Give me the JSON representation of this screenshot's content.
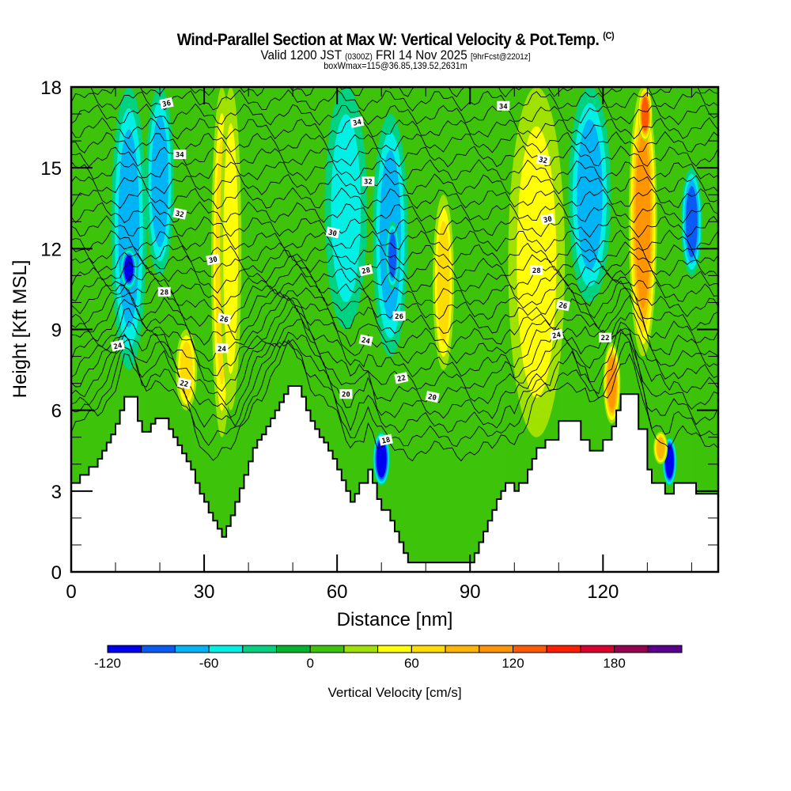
{
  "header": {
    "title": "Wind-Parallel Section at Max W: Vertical Velocity & Pot.Temp.",
    "copyright": "(C)",
    "valid_prefix": "Valid 1200 JST",
    "valid_utc": "(0300Z)",
    "valid_date": "FRI 14 Nov 2025",
    "forecast": "[9hrFcst@2201z]",
    "boxwmax": "boxWmax=115@36.85,139.52,2631m"
  },
  "chart_data": {
    "type": "heatmap",
    "title": "Wind-Parallel Section at Max W: Vertical Velocity & Pot.Temp.",
    "xlabel": "Distance [nm]",
    "ylabel": "Height [Kft MSL]",
    "xlim": [
      0,
      146
    ],
    "ylim": [
      0,
      18
    ],
    "xticks": [
      0,
      30,
      60,
      90,
      120
    ],
    "xtick_labels": [
      "0",
      "30",
      "60",
      "90",
      "120"
    ],
    "yticks": [
      0,
      3,
      6,
      9,
      12,
      15,
      18
    ],
    "ytick_labels": [
      "0",
      "3",
      "6",
      "9",
      "12",
      "15",
      "18"
    ],
    "x_minor_step": 10,
    "y_minor_step": 1,
    "colorbar": {
      "label": "Vertical Velocity [cm/s]",
      "placement": "bottom",
      "min": -120,
      "step": 20,
      "tick_values": [
        -120,
        -60,
        0,
        60,
        120,
        180
      ],
      "tick_labels": [
        "-120",
        "-60",
        "0",
        "60",
        "120",
        "180"
      ],
      "colors": [
        "#0000f0",
        "#0a5af5",
        "#00b4f5",
        "#00f0e6",
        "#00d282",
        "#00b42d",
        "#3cc30a",
        "#a0e100",
        "#ffff00",
        "#ffdc00",
        "#ffb400",
        "#ff9600",
        "#ff5a00",
        "#ff1e00",
        "#dc0032",
        "#960050",
        "#5a008c"
      ]
    },
    "background_value_cm_s": 0,
    "velocity_streaks": [
      {
        "x": 13,
        "xw": 2.5,
        "y0": 7.5,
        "y1": 18,
        "value": -60
      },
      {
        "x": 13,
        "xw": 1.2,
        "y0": 10.5,
        "y1": 12,
        "value": -100
      },
      {
        "x": 20,
        "xw": 2,
        "y0": 11,
        "y1": 18,
        "value": -50
      },
      {
        "x": 34,
        "xw": 1.5,
        "y0": 5,
        "y1": 18,
        "value": 60
      },
      {
        "x": 36,
        "xw": 1.5,
        "y0": 6,
        "y1": 18,
        "value": 40
      },
      {
        "x": 26,
        "xw": 1.5,
        "y0": 6,
        "y1": 9,
        "value": 50
      },
      {
        "x": 62,
        "xw": 3,
        "y0": 9,
        "y1": 18,
        "value": -40
      },
      {
        "x": 72,
        "xw": 2.5,
        "y0": 8,
        "y1": 17,
        "value": -60
      },
      {
        "x": 72.5,
        "xw": 1,
        "y0": 10.5,
        "y1": 13,
        "value": -70
      },
      {
        "x": 84,
        "xw": 1.5,
        "y0": 7.5,
        "y1": 14,
        "value": 50
      },
      {
        "x": 70,
        "xw": 1.2,
        "y0": 3.2,
        "y1": 5.2,
        "value": -110
      },
      {
        "x": 105,
        "xw": 4,
        "y0": 5,
        "y1": 18,
        "value": 30
      },
      {
        "x": 117,
        "xw": 3,
        "y0": 10,
        "y1": 18,
        "value": -50
      },
      {
        "x": 129,
        "xw": 2,
        "y0": 8,
        "y1": 18,
        "value": 90
      },
      {
        "x": 129.5,
        "xw": 1,
        "y0": 16,
        "y1": 18,
        "value": 110
      },
      {
        "x": 122,
        "xw": 1.2,
        "y0": 5.5,
        "y1": 8.5,
        "value": 90
      },
      {
        "x": 140,
        "xw": 1.5,
        "y0": 11,
        "y1": 15,
        "value": -80
      },
      {
        "x": 135,
        "xw": 1,
        "y0": 3.2,
        "y1": 5,
        "value": -120
      },
      {
        "x": 133,
        "xw": 1,
        "y0": 4,
        "y1": 5.2,
        "value": 80
      }
    ],
    "terrain": {
      "x": [
        0,
        2,
        4,
        6,
        7,
        8,
        9,
        10,
        11,
        12,
        13,
        15,
        16,
        17,
        18,
        19,
        20,
        21,
        22,
        23,
        24,
        25,
        26,
        27,
        28,
        29,
        30,
        31,
        32,
        33,
        34,
        35,
        36,
        37,
        38,
        39,
        40,
        41,
        42,
        43,
        44,
        45,
        46,
        47,
        48,
        49,
        50,
        52,
        53,
        54,
        55,
        56,
        57,
        58,
        59,
        60,
        61,
        62,
        63,
        64,
        65,
        66,
        67,
        68,
        69,
        70,
        72,
        73,
        74,
        75,
        76,
        77,
        78,
        79,
        80,
        82,
        84,
        86,
        88,
        90,
        91,
        92,
        93,
        94,
        95,
        96,
        97,
        98,
        99,
        100,
        101,
        103,
        104,
        105,
        107,
        108,
        110,
        113,
        115,
        116,
        117,
        119,
        120,
        122,
        123,
        124,
        126,
        128,
        130,
        131,
        132,
        134,
        135,
        136,
        138,
        141,
        144,
        146
      ],
      "y": [
        3.3,
        3.6,
        3.9,
        4.2,
        4.5,
        4.8,
        5.1,
        5.5,
        6,
        6.5,
        6.5,
        5.6,
        5.2,
        5.2,
        5.5,
        5.7,
        5.7,
        5.7,
        5.3,
        5,
        4.7,
        4.4,
        4.1,
        3.8,
        3.3,
        2.9,
        2.6,
        2.2,
        1.9,
        1.6,
        1.3,
        1.7,
        2.1,
        2.6,
        3.1,
        3.6,
        4.1,
        4.6,
        4.9,
        5.1,
        5.4,
        5.7,
        6,
        6.3,
        6.6,
        6.9,
        6.9,
        6.5,
        6,
        5.6,
        5.3,
        5,
        4.8,
        4.5,
        4.2,
        3.8,
        3.4,
        3,
        2.6,
        2.9,
        3.3,
        3.3,
        3.8,
        3.3,
        2.7,
        2.3,
        1.9,
        1.5,
        1.1,
        0.7,
        0.35,
        0.35,
        0.35,
        0.35,
        0.35,
        0.35,
        0.35,
        0.35,
        0.35,
        0.35,
        0.7,
        1.1,
        1.5,
        1.9,
        2.3,
        2.7,
        3.0,
        3.3,
        3.3,
        3.0,
        3.3,
        3.8,
        4.2,
        4.6,
        4.9,
        4.9,
        5.6,
        5.6,
        4.9,
        4.9,
        4.5,
        4.5,
        4.9,
        5.4,
        6,
        6.6,
        6.6,
        5.3,
        3.8,
        3.3,
        3.3,
        2.9,
        2.9,
        3.3,
        3.3,
        2.9,
        2.9,
        2.9,
        2.6
      ]
    },
    "contour_levels": [
      18,
      20,
      22,
      24,
      26,
      28,
      30,
      32,
      34,
      36
    ],
    "contour_labels": [
      {
        "text": "36",
        "x": 21.5,
        "y": 17.4
      },
      {
        "text": "34",
        "x": 24.5,
        "y": 15.5
      },
      {
        "text": "32",
        "x": 24.5,
        "y": 13.3
      },
      {
        "text": "30",
        "x": 32,
        "y": 11.6
      },
      {
        "text": "28",
        "x": 21,
        "y": 10.4
      },
      {
        "text": "26",
        "x": 34.5,
        "y": 9.4
      },
      {
        "text": "24",
        "x": 10.5,
        "y": 8.4
      },
      {
        "text": "24",
        "x": 34,
        "y": 8.3
      },
      {
        "text": "22",
        "x": 25.5,
        "y": 7.0
      },
      {
        "text": "34",
        "x": 64.5,
        "y": 16.7
      },
      {
        "text": "32",
        "x": 67,
        "y": 14.5
      },
      {
        "text": "30",
        "x": 59,
        "y": 12.6
      },
      {
        "text": "28",
        "x": 66.5,
        "y": 11.2
      },
      {
        "text": "26",
        "x": 74,
        "y": 9.5
      },
      {
        "text": "24",
        "x": 66.5,
        "y": 8.6
      },
      {
        "text": "22",
        "x": 74.5,
        "y": 7.2
      },
      {
        "text": "20",
        "x": 62,
        "y": 6.6
      },
      {
        "text": "20",
        "x": 81.5,
        "y": 6.5
      },
      {
        "text": "18",
        "x": 71,
        "y": 4.9
      },
      {
        "text": "34",
        "x": 97.5,
        "y": 17.3
      },
      {
        "text": "32",
        "x": 106.5,
        "y": 15.3
      },
      {
        "text": "30",
        "x": 107.5,
        "y": 13.1
      },
      {
        "text": "28",
        "x": 105,
        "y": 11.2
      },
      {
        "text": "26",
        "x": 111,
        "y": 9.9
      },
      {
        "text": "24",
        "x": 109.5,
        "y": 8.8
      },
      {
        "text": "22",
        "x": 120.5,
        "y": 8.7
      }
    ]
  }
}
